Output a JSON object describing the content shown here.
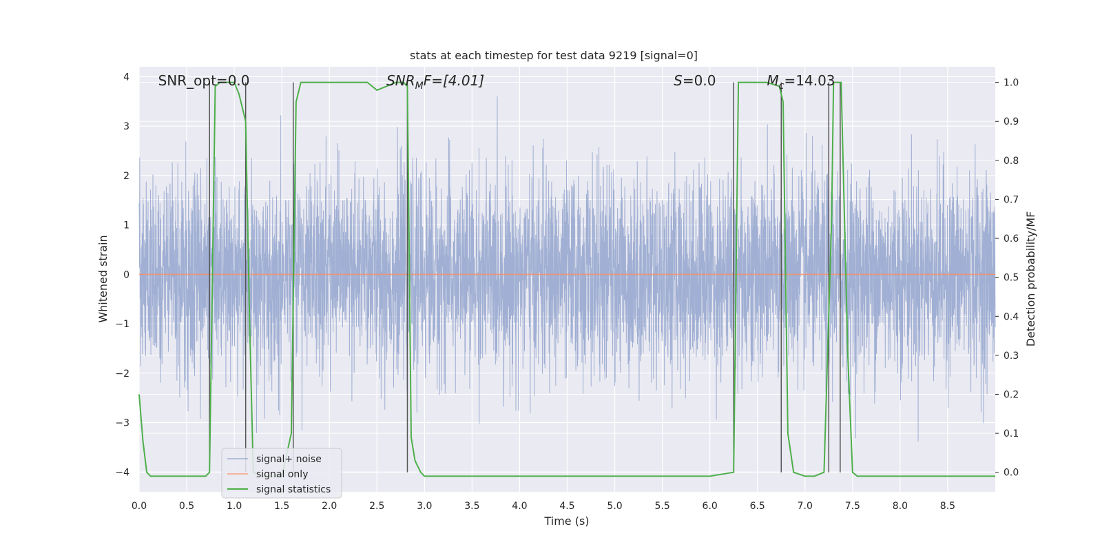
{
  "chart_data": {
    "type": "line",
    "title": "stats at each timestep for test data 9219 [signal=0]",
    "xlabel": "Time (s)",
    "ylabel": "Whitened strain",
    "ylabel_right": "Detection probability/MF",
    "xlim": [
      0,
      9.0
    ],
    "ylim_left": [
      -4.4,
      4.2
    ],
    "ylim_right": [
      -0.05,
      1.04
    ],
    "x_ticks": [
      "0.0",
      "0.5",
      "1.0",
      "1.5",
      "2.0",
      "2.5",
      "3.0",
      "3.5",
      "4.0",
      "4.5",
      "5.0",
      "5.5",
      "6.0",
      "6.5",
      "7.0",
      "7.5",
      "8.0",
      "8.5"
    ],
    "y_ticks_left": [
      "−4",
      "−3",
      "−2",
      "−1",
      "0",
      "1",
      "2",
      "3",
      "4"
    ],
    "y_ticks_right": [
      "0.0",
      "0.1",
      "0.2",
      "0.3",
      "0.4",
      "0.5",
      "0.6",
      "0.7",
      "0.8",
      "0.9",
      "1.0"
    ],
    "grid": true,
    "legend_position": "lower-left",
    "annotations": [
      {
        "id": "snr-opt",
        "text": "SNR_opt=0.0",
        "x": 0.2
      },
      {
        "id": "snr-mf",
        "text": "SNR",
        "sub": "M",
        "after": "F=[4.01]",
        "x": 2.6
      },
      {
        "id": "s",
        "text": "S",
        "after": "=0.0",
        "x": 5.62
      },
      {
        "id": "mc",
        "text": "M",
        "sub": "c",
        "after": "=14.03",
        "x": 6.6
      }
    ],
    "vlines_x": [
      0.74,
      1.12,
      1.62,
      2.82,
      6.25,
      6.75,
      7.25,
      7.37
    ],
    "series": [
      {
        "name": "signal+ noise",
        "color": "#8da0cb",
        "kind": "noise",
        "amplitude_std": 1.0,
        "y_range": [
          -3.95,
          3.6
        ]
      },
      {
        "name": "signal only",
        "color": "#fc8d62",
        "kind": "constant",
        "value": 0.0
      },
      {
        "name": "signal statistics",
        "color": "#4daf4a",
        "axis": "right",
        "x": [
          0.0,
          0.04,
          0.08,
          0.12,
          0.16,
          0.5,
          0.7,
          0.74,
          0.8,
          0.85,
          0.9,
          1.0,
          1.05,
          1.12,
          1.16,
          1.2,
          1.3,
          1.5,
          1.6,
          1.65,
          1.7,
          1.8,
          2.0,
          2.2,
          2.4,
          2.45,
          2.5,
          2.6,
          2.7,
          2.78,
          2.82,
          2.86,
          2.9,
          2.96,
          3.0,
          4.0,
          5.0,
          6.0,
          6.25,
          6.3,
          6.4,
          6.6,
          6.73,
          6.77,
          6.82,
          6.88,
          7.0,
          7.1,
          7.2,
          7.28,
          7.3,
          7.35,
          7.38,
          7.45,
          7.5,
          7.55,
          8.0,
          8.5,
          9.0
        ],
        "y": [
          0.2,
          0.08,
          0.0,
          -0.01,
          -0.01,
          -0.01,
          -0.01,
          0.0,
          0.99,
          1.0,
          1.0,
          1.0,
          0.97,
          0.9,
          0.4,
          0.0,
          -0.01,
          -0.01,
          0.1,
          0.95,
          1.0,
          1.0,
          1.0,
          1.0,
          1.0,
          0.99,
          0.98,
          0.99,
          1.0,
          1.0,
          0.99,
          0.09,
          0.03,
          0.0,
          -0.01,
          -0.01,
          -0.01,
          -0.01,
          0.0,
          1.0,
          1.0,
          1.0,
          0.99,
          0.95,
          0.1,
          0.0,
          -0.01,
          -0.01,
          0.0,
          0.65,
          1.0,
          1.0,
          1.0,
          0.3,
          0.0,
          -0.01,
          -0.01,
          -0.01,
          -0.01
        ]
      }
    ]
  }
}
